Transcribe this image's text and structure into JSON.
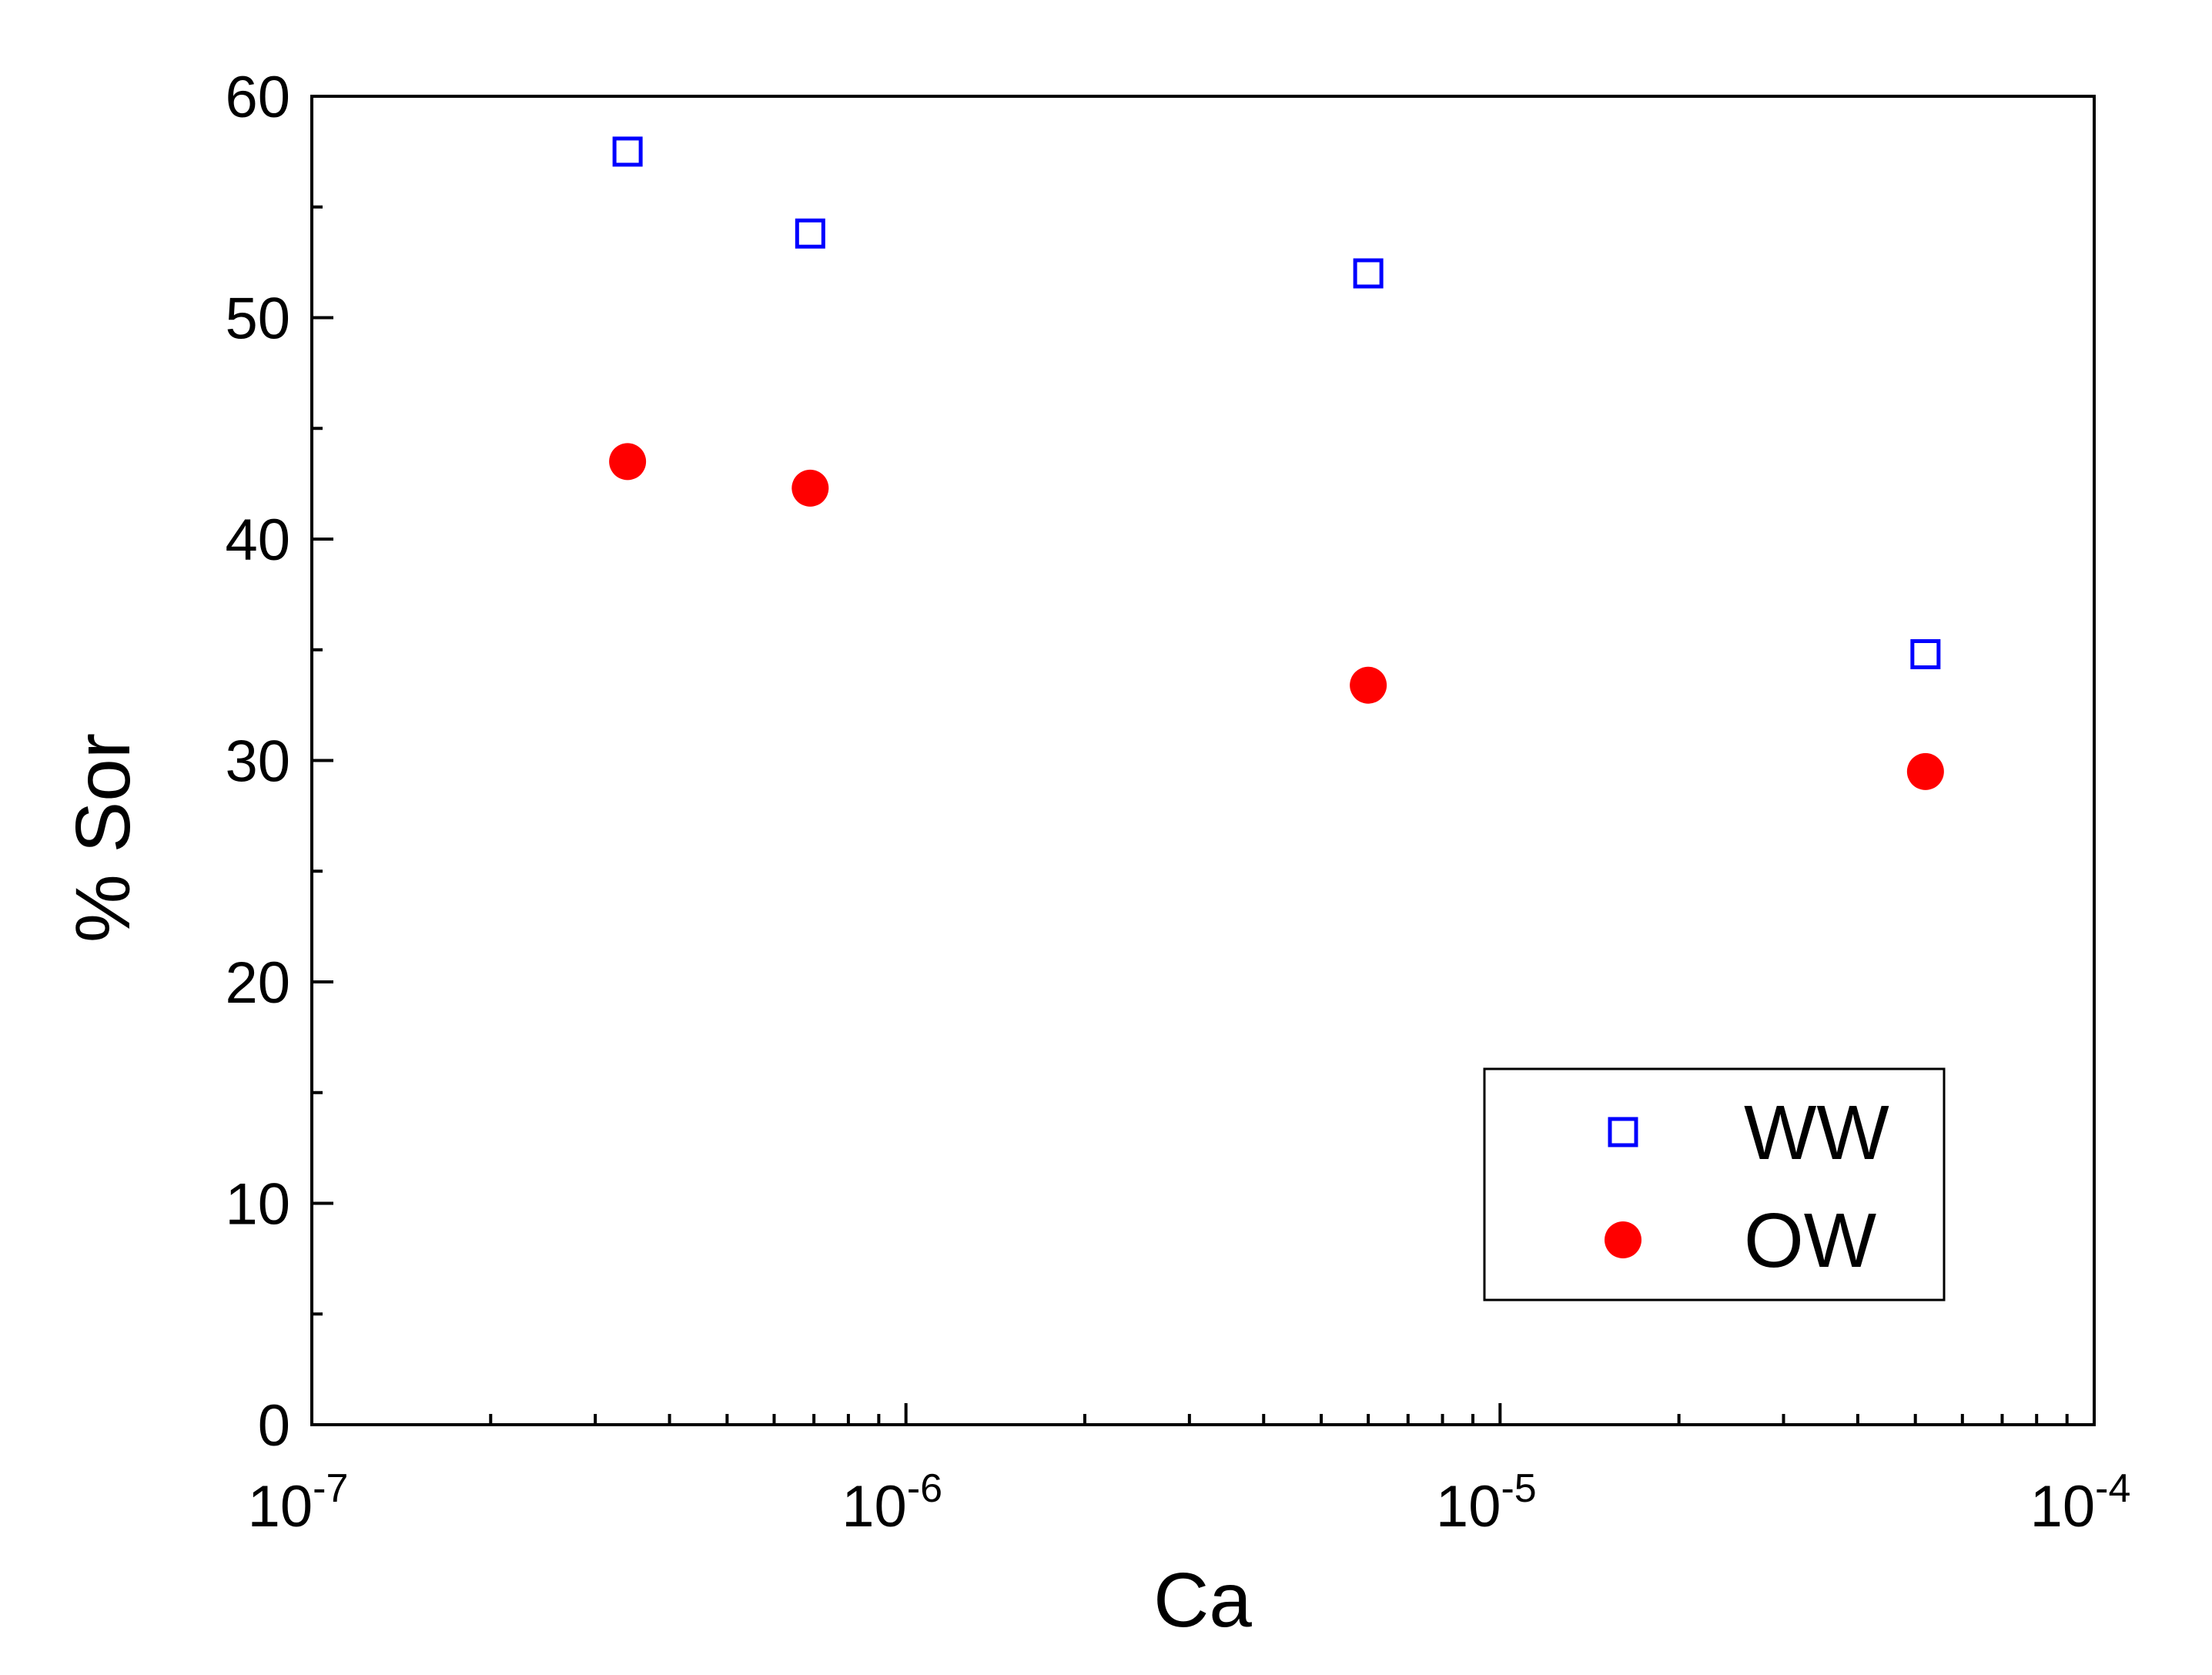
{
  "chart_data": {
    "type": "scatter",
    "xlabel": "Ca",
    "ylabel": "% Sor",
    "xscale": "log",
    "xlim": [
      1e-07,
      0.0001
    ],
    "ylim": [
      0,
      60
    ],
    "grid": false,
    "legend_position": "bottom-right",
    "x_ticks": [
      {
        "value": 1e-07,
        "base": "10",
        "exp": "-7"
      },
      {
        "value": 1e-06,
        "base": "10",
        "exp": "-6"
      },
      {
        "value": 1e-05,
        "base": "10",
        "exp": "-5"
      },
      {
        "value": 0.0001,
        "base": "10",
        "exp": "-4"
      }
    ],
    "y_ticks": [
      {
        "value": 0,
        "label": "0"
      },
      {
        "value": 10,
        "label": "10"
      },
      {
        "value": 20,
        "label": "20"
      },
      {
        "value": 30,
        "label": "30"
      },
      {
        "value": 40,
        "label": "40"
      },
      {
        "value": 50,
        "label": "50"
      },
      {
        "value": 60,
        "label": "60"
      }
    ],
    "series": [
      {
        "name": "WW",
        "marker": "open-square",
        "color": "#0000ff",
        "x": [
          3.4e-07,
          6.9e-07,
          6e-06,
          5.2e-05
        ],
        "y": [
          57.5,
          53.8,
          52.0,
          34.8
        ]
      },
      {
        "name": "OW",
        "marker": "filled-circle",
        "color": "#ff0000",
        "x": [
          3.4e-07,
          6.9e-07,
          6e-06,
          5.2e-05
        ],
        "y": [
          43.5,
          42.3,
          33.4,
          29.5
        ]
      }
    ]
  }
}
